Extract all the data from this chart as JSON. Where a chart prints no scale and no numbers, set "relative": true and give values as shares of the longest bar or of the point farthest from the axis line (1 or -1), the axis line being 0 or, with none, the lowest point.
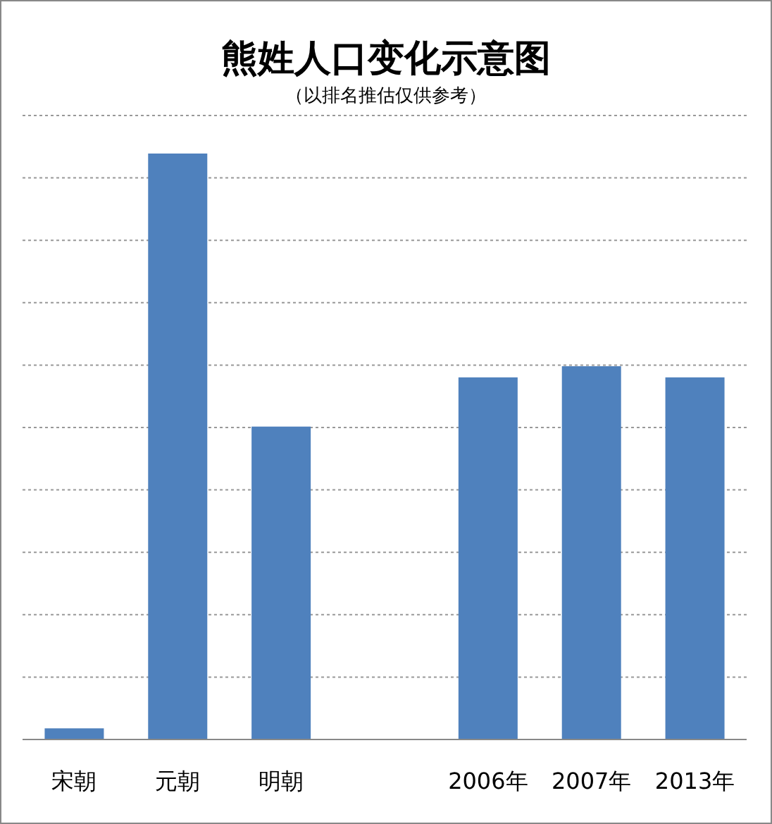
{
  "chart_data": {
    "type": "bar",
    "title": "熊姓人口变化示意图",
    "subtitle": "（以排名推估仅供参考）",
    "categories": [
      "宋朝",
      "元朝",
      "明朝",
      null,
      "2006年",
      "2007年",
      "2013年"
    ],
    "values": [
      0.019,
      1,
      0.534,
      null,
      0.618,
      0.637,
      0.618
    ],
    "color": "#4f81bd",
    "relative": true,
    "grid": "y"
  }
}
